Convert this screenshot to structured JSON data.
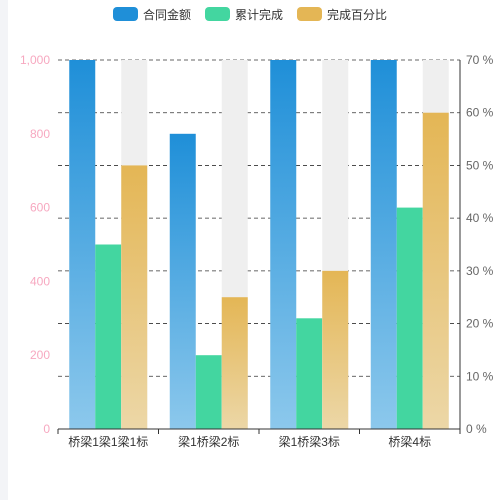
{
  "chart_data": {
    "type": "bar",
    "categories": [
      "桥梁1梁1梁1标",
      "梁1桥梁2标",
      "梁1桥梁3标",
      "桥梁4标"
    ],
    "series": [
      {
        "name": "合同金额",
        "axis": "left",
        "values": [
          1000,
          800,
          1000,
          1000
        ],
        "color": "#1f8fd8"
      },
      {
        "name": "累计完成",
        "axis": "left",
        "values": [
          500,
          200,
          300,
          600
        ],
        "color": "#43d6a0"
      },
      {
        "name": "完成百分比",
        "axis": "right",
        "values": [
          50,
          25,
          30,
          60
        ],
        "color": "#e4b655"
      }
    ],
    "left_axis": {
      "min": 0,
      "max": 1000,
      "ticks": [
        "0",
        "200",
        "400",
        "600",
        "800",
        "1,000"
      ]
    },
    "right_axis": {
      "min": 0,
      "max": 70,
      "ticks": [
        "0 %",
        "10 %",
        "20 %",
        "30 %",
        "40 %",
        "50 %",
        "60 %",
        "70 %"
      ],
      "background_bar_max": 70
    },
    "grid": true,
    "legend_position": "top-center"
  },
  "colors": {
    "left_tick": "#f7a8c0",
    "right_tick": "#666666",
    "category_label": "#333333",
    "background_bar": "#efefef"
  }
}
